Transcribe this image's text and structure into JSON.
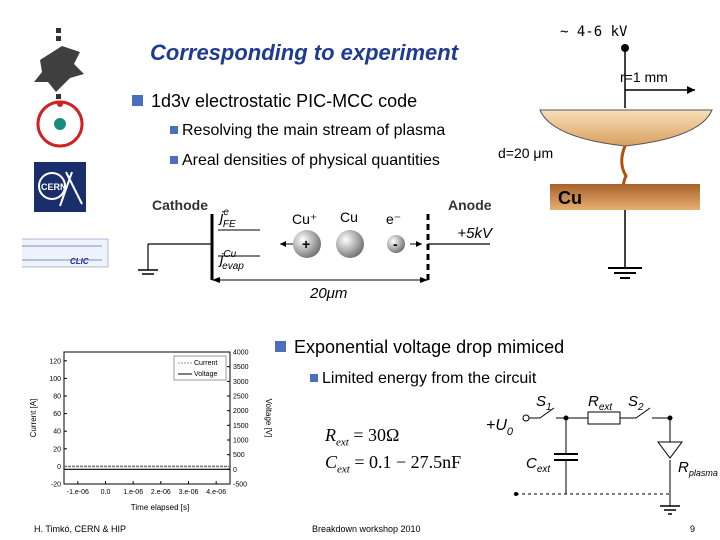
{
  "title": "Corresponding to experiment",
  "bullets": {
    "main1": "1d3v electrostatic PIC-MCC code",
    "sub1": "Resolving the main stream of plasma",
    "sub2": "Areal densities of physical quantities",
    "main2": "Exponential voltage drop mimiced",
    "sub3": "Limited energy from the circuit"
  },
  "electrode": {
    "voltage": "~ 4-6 kV",
    "radius": "r=1 mm",
    "gap": "d=20 μm",
    "material": "Cu"
  },
  "pic_diagram": {
    "cathode": "Cathode",
    "anode": "Anode",
    "cu_plus": "Cu⁺",
    "cu": "Cu",
    "electron": "e⁻",
    "plus_sign": "+",
    "minus_sign": "-",
    "voltage": "+5kV",
    "width": "20μm",
    "j_fe": "j",
    "j_fe_sup": "e",
    "j_fe_sub": "FE",
    "j_cu": "j",
    "j_cu_sup": "Cu",
    "j_cu_sub": "evap"
  },
  "circuit": {
    "u0": "+U",
    "u0_sub": "0",
    "s1": "S",
    "s1_sub": "1",
    "s2": "S",
    "s2_sub": "2",
    "rext": "R",
    "rext_sub": "ext",
    "cext": "C",
    "cext_sub": "ext",
    "rplasma": "R",
    "rplasma_sub": "plasma",
    "formula_r": "R",
    "formula_r_sub": "ext",
    "formula_r_value": " = 30Ω",
    "formula_c": "C",
    "formula_c_sub": "ext",
    "formula_c_value": " = 0.1 − 27.5nF"
  },
  "chart_data": {
    "type": "line",
    "xlabel": "Time elapsed [s]",
    "ylabel": "Current [A]",
    "y2label": "Voltage [V]",
    "xticks": [
      "-1.e-06",
      "0.0",
      "1.e-06",
      "2.e-06",
      "3.e-06",
      "4.e-06"
    ],
    "yticks": [
      "120",
      "100",
      "80",
      "60",
      "40",
      "20",
      "0",
      "-20"
    ],
    "y2ticks": [
      "4000",
      "3500",
      "3000",
      "2500",
      "2000",
      "1500",
      "1000",
      "500",
      "0",
      "-500"
    ],
    "xlim": [
      -1.5e-06,
      4.5e-06
    ],
    "ylim": [
      -20,
      130
    ],
    "y2lim": [
      -500,
      4000
    ],
    "legend": "top-center",
    "series": [
      {
        "name": "Current",
        "axis": "left",
        "x": [
          -1.5e-06,
          -1.2e-06,
          -6e-07,
          -3e-07,
          0,
          2.5e-07,
          5e-07,
          1e-06,
          1.5e-06,
          2e-06,
          3e-06,
          4.5e-06
        ],
        "y": [
          0,
          0,
          0,
          0,
          0,
          0,
          0,
          0,
          0,
          0,
          0,
          0
        ]
      },
      {
        "name": "Voltage",
        "axis": "right",
        "x": [
          -1.5e-06,
          -1.2e-06,
          -6e-07,
          -3e-07,
          0,
          2.5e-07,
          5e-07,
          1e-06,
          1.5e-06,
          2e-06,
          3e-06,
          4.5e-06
        ],
        "y": [
          0,
          0,
          0,
          0,
          0,
          0,
          0,
          0,
          0,
          0,
          0,
          0
        ]
      }
    ]
  },
  "footer": {
    "left": "H. Timkó, CERN & HIP",
    "center": "Breakdown workshop 2010",
    "right": "9"
  }
}
